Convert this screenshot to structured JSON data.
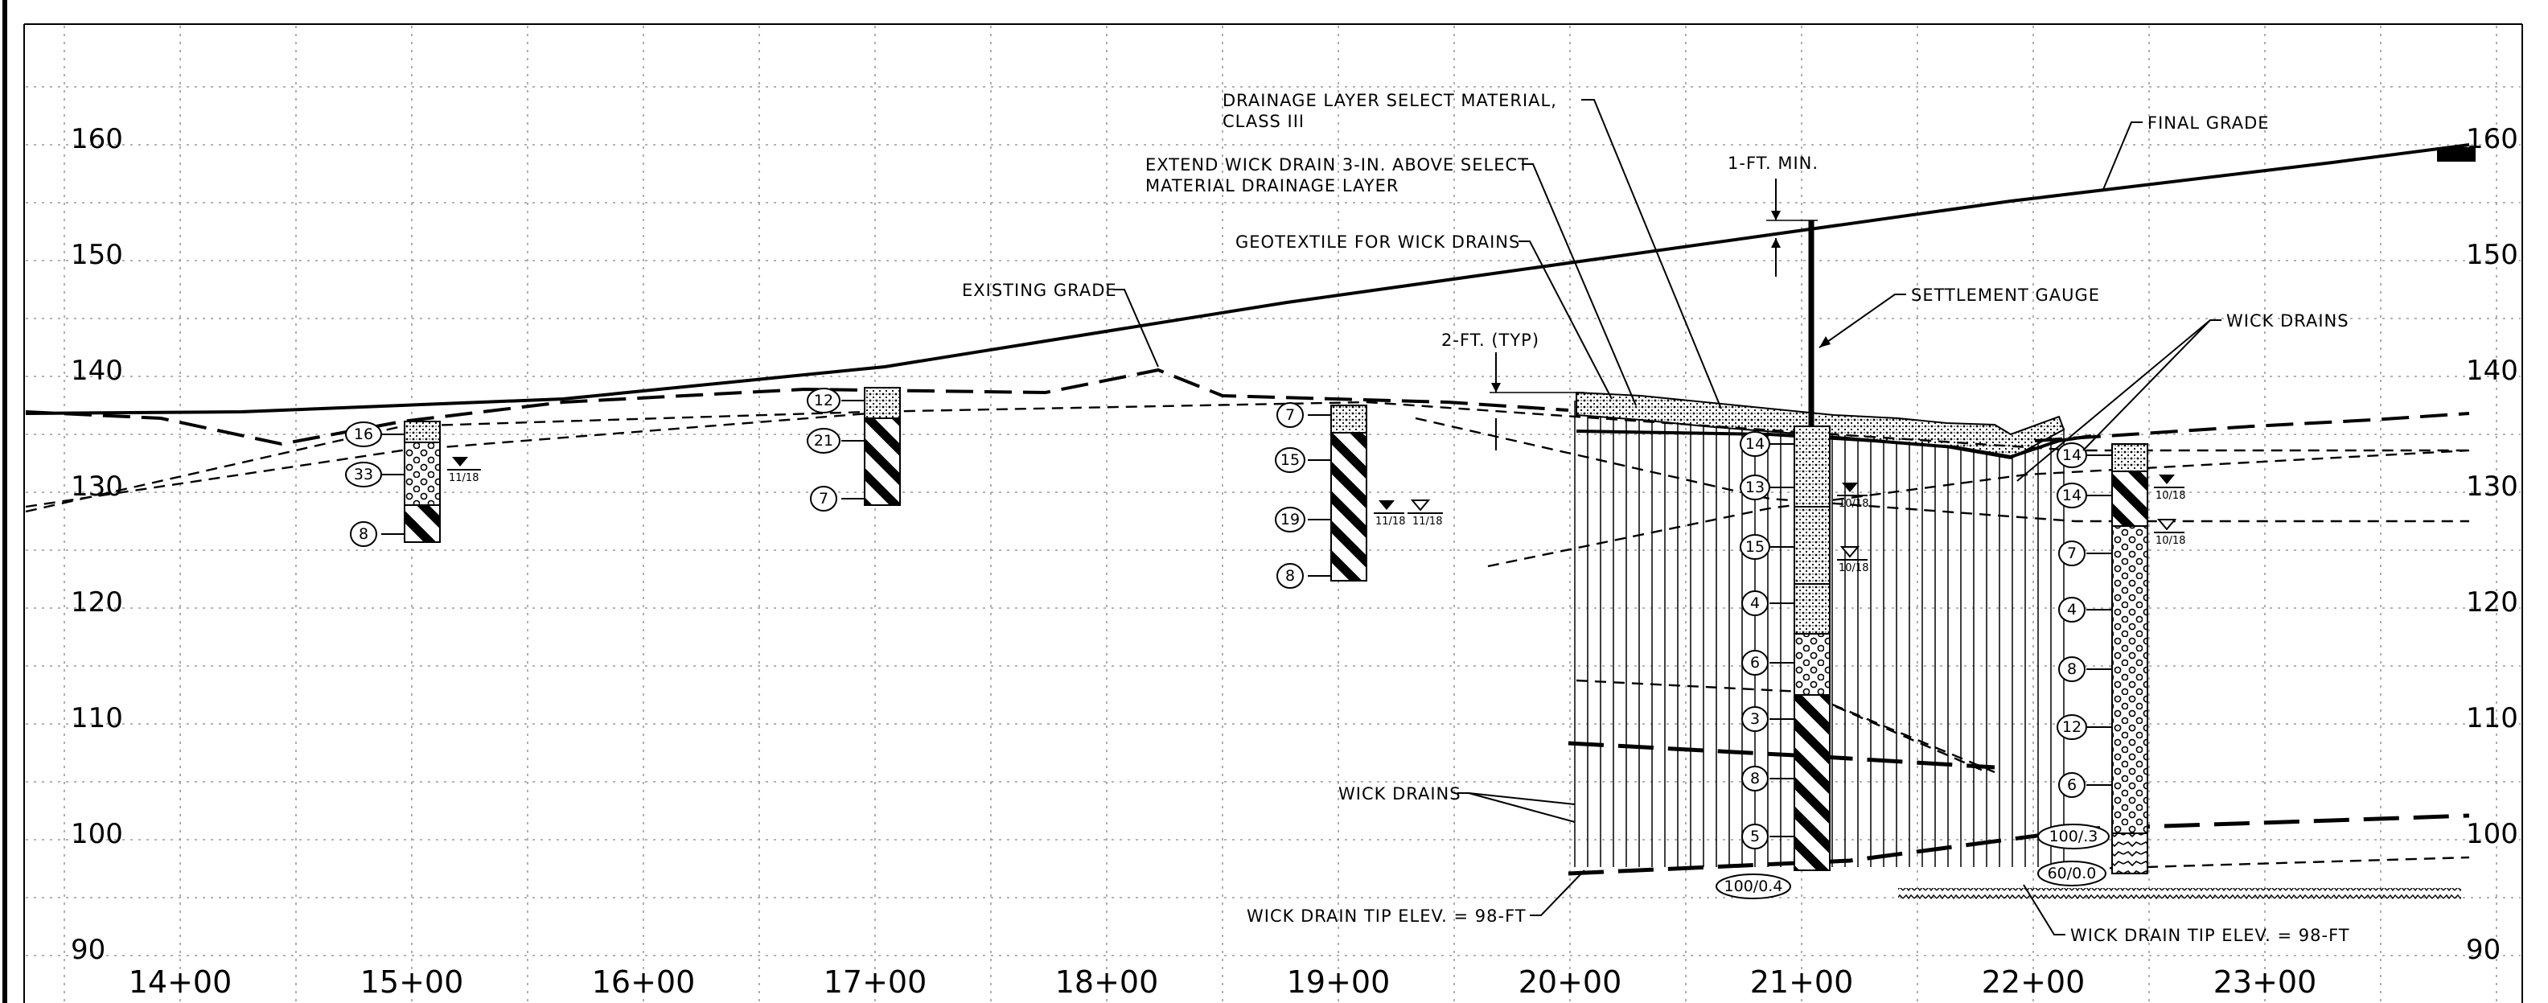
{
  "elevation_labels": [
    "160",
    "150",
    "140",
    "130",
    "120",
    "110",
    "100",
    "90"
  ],
  "station_labels": [
    "14+00",
    "15+00",
    "16+00",
    "17+00",
    "18+00",
    "19+00",
    "20+00",
    "21+00",
    "22+00",
    "23+00"
  ],
  "callouts": {
    "drainage_layer_1": "DRAINAGE LAYER SELECT MATERIAL,",
    "drainage_layer_2": "CLASS III",
    "extend_wick_1": "EXTEND WICK DRAIN 3-IN. ABOVE SELECT",
    "extend_wick_2": "MATERIAL DRAINAGE LAYER",
    "geotextile": "GEOTEXTILE FOR WICK DRAINS",
    "existing_grade": "EXISTING GRADE",
    "final_grade": "FINAL GRADE",
    "one_ft_min": "1-FT. MIN.",
    "settlement_gauge": "SETTLEMENT GAUGE",
    "two_ft_typ": "2-FT. (TYP)",
    "wick_drains_right": "WICK DRAINS",
    "wick_drains_left": "WICK DRAINS",
    "tip_elev_left": "WICK DRAIN TIP ELEV. = 98-FT",
    "tip_elev_right": "WICK DRAIN TIP ELEV. = 98-FT"
  },
  "borings": {
    "b15": [
      "16",
      "33",
      "8"
    ],
    "b17": [
      "12",
      "21",
      "7"
    ],
    "b19": [
      "7",
      "15",
      "19",
      "8"
    ],
    "b21": [
      "14",
      "13",
      "15",
      "4",
      "6",
      "3",
      "8",
      "5"
    ],
    "b22": [
      "14",
      "14",
      "7",
      "4",
      "8",
      "12",
      "6"
    ]
  },
  "water_dates": {
    "b15": "11/18",
    "b19a": "11/18",
    "b19b": "11/18",
    "b21a": "10/18",
    "b21b": "10/18",
    "b22a": "10/18",
    "b22b": "10/18"
  },
  "refusal": {
    "b21": "100/0.4",
    "b22a": "100/.3",
    "b22b": "60/0.0"
  }
}
